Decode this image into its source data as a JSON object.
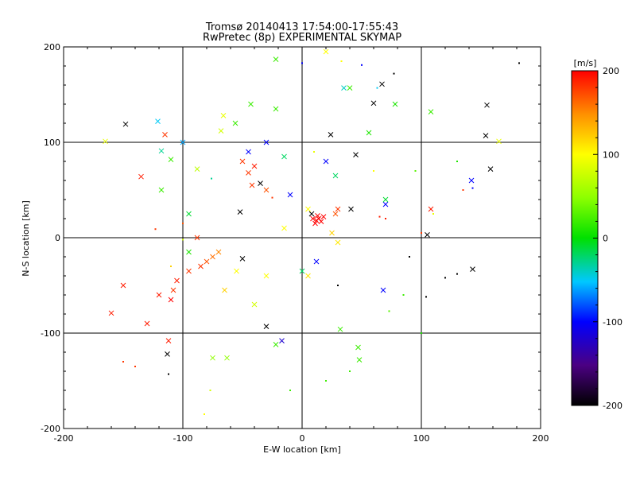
{
  "chart_data": {
    "type": "scatter",
    "title": "Tromsø 20140413 17:54:00-17:55:43",
    "subtitle": "RwPretec (8p) EXPERIMENTAL SKYMAP",
    "xlabel": "E-W location [km]",
    "ylabel": "N-S location [km]",
    "xlim": [
      -200,
      200
    ],
    "ylim": [
      -200,
      200
    ],
    "x_ticks": [
      "-200",
      "-100",
      "0",
      "100",
      "200"
    ],
    "y_ticks": [
      "-200",
      "-100",
      "0",
      "100",
      "200"
    ],
    "grid": "on at ±100 and 0",
    "colorbar": {
      "label": "[m/s]",
      "range": [
        -200,
        200
      ],
      "ticks": [
        "200",
        "100",
        "0",
        "-100",
        "-200"
      ],
      "colormap": "black-purple-blue-cyan-green-yellow-red",
      "placement": "right"
    },
    "markers": "crosses (x) for larger echoes, small dots for weaker ones",
    "points": [
      {
        "x": 182,
        "y": 183,
        "v": -200,
        "m": "dot"
      },
      {
        "x": 67,
        "y": 161,
        "v": -200,
        "m": "x"
      },
      {
        "x": 60,
        "y": 141,
        "v": -200,
        "m": "x"
      },
      {
        "x": 155,
        "y": 139,
        "v": -200,
        "m": "x"
      },
      {
        "x": 154,
        "y": 107,
        "v": -200,
        "m": "x"
      },
      {
        "x": 158,
        "y": 72,
        "v": -200,
        "m": "x"
      },
      {
        "x": 77,
        "y": 172,
        "v": -200,
        "m": "dot"
      },
      {
        "x": 105,
        "y": 3,
        "v": -200,
        "m": "x"
      },
      {
        "x": 143,
        "y": -33,
        "v": -200,
        "m": "x"
      },
      {
        "x": 120,
        "y": -42,
        "v": -200,
        "m": "dot"
      },
      {
        "x": 104,
        "y": -62,
        "v": -200,
        "m": "dot"
      },
      {
        "x": -148,
        "y": 119,
        "v": -200,
        "m": "x"
      },
      {
        "x": -113,
        "y": -122,
        "v": -200,
        "m": "x"
      },
      {
        "x": -112,
        "y": -143,
        "v": -200,
        "m": "dot"
      },
      {
        "x": -30,
        "y": -93,
        "v": -200,
        "m": "x"
      },
      {
        "x": 24,
        "y": 108,
        "v": -200,
        "m": "x"
      },
      {
        "x": 45,
        "y": 87,
        "v": -200,
        "m": "x"
      },
      {
        "x": 41,
        "y": 30,
        "v": -200,
        "m": "x"
      },
      {
        "x": -50,
        "y": -22,
        "v": -200,
        "m": "x"
      },
      {
        "x": -52,
        "y": 27,
        "v": -200,
        "m": "x"
      },
      {
        "x": -35,
        "y": 57,
        "v": -200,
        "m": "x"
      },
      {
        "x": 8,
        "y": 25,
        "v": -200,
        "m": "x"
      },
      {
        "x": 30,
        "y": -50,
        "v": -200,
        "m": "dot"
      },
      {
        "x": 90,
        "y": -20,
        "v": -200,
        "m": "dot"
      },
      {
        "x": 130,
        "y": -38,
        "v": -200,
        "m": "dot"
      },
      {
        "x": -17,
        "y": -108,
        "v": -120,
        "m": "x"
      },
      {
        "x": 142,
        "y": 60,
        "v": -100,
        "m": "x"
      },
      {
        "x": 143,
        "y": 52,
        "v": -100,
        "m": "dot"
      },
      {
        "x": 70,
        "y": 35,
        "v": -100,
        "m": "x"
      },
      {
        "x": 68,
        "y": -55,
        "v": -100,
        "m": "x"
      },
      {
        "x": -45,
        "y": 90,
        "v": -100,
        "m": "x"
      },
      {
        "x": -30,
        "y": 100,
        "v": -100,
        "m": "x"
      },
      {
        "x": -10,
        "y": 45,
        "v": -100,
        "m": "x"
      },
      {
        "x": 20,
        "y": 80,
        "v": -100,
        "m": "x"
      },
      {
        "x": 12,
        "y": -25,
        "v": -100,
        "m": "x"
      },
      {
        "x": 0,
        "y": 183,
        "v": -100,
        "m": "dot"
      },
      {
        "x": 50,
        "y": 181,
        "v": -100,
        "m": "dot"
      },
      {
        "x": -121,
        "y": 122,
        "v": -50,
        "m": "x"
      },
      {
        "x": 63,
        "y": 157,
        "v": -50,
        "m": "dot"
      },
      {
        "x": -100,
        "y": 100,
        "v": -60,
        "m": "x"
      },
      {
        "x": 35,
        "y": 157,
        "v": -40,
        "m": "x"
      },
      {
        "x": -76,
        "y": 62,
        "v": -30,
        "m": "dot"
      },
      {
        "x": -118,
        "y": 91,
        "v": -30,
        "m": "x"
      },
      {
        "x": 28,
        "y": 65,
        "v": -20,
        "m": "x"
      },
      {
        "x": 70,
        "y": 40,
        "v": -10,
        "m": "x"
      },
      {
        "x": -15,
        "y": 85,
        "v": -20,
        "m": "x"
      },
      {
        "x": 0,
        "y": -35,
        "v": -20,
        "m": "x"
      },
      {
        "x": -95,
        "y": 25,
        "v": -10,
        "m": "x"
      },
      {
        "x": -118,
        "y": 50,
        "v": 20,
        "m": "x"
      },
      {
        "x": 40,
        "y": 157,
        "v": 20,
        "m": "x"
      },
      {
        "x": 56,
        "y": 110,
        "v": 10,
        "m": "x"
      },
      {
        "x": -56,
        "y": 120,
        "v": 20,
        "m": "x"
      },
      {
        "x": 108,
        "y": 132,
        "v": 20,
        "m": "x"
      },
      {
        "x": 78,
        "y": 140,
        "v": 10,
        "m": "x"
      },
      {
        "x": -110,
        "y": 82,
        "v": 20,
        "m": "x"
      },
      {
        "x": -22,
        "y": 187,
        "v": 20,
        "m": "x"
      },
      {
        "x": -43,
        "y": 140,
        "v": 20,
        "m": "x"
      },
      {
        "x": -22,
        "y": 135,
        "v": 20,
        "m": "x"
      },
      {
        "x": -95,
        "y": -15,
        "v": 10,
        "m": "x"
      },
      {
        "x": 47,
        "y": -115,
        "v": 20,
        "m": "x"
      },
      {
        "x": 48,
        "y": -128,
        "v": 20,
        "m": "x"
      },
      {
        "x": 32,
        "y": -96,
        "v": 20,
        "m": "x"
      },
      {
        "x": -22,
        "y": -112,
        "v": 20,
        "m": "x"
      },
      {
        "x": -75,
        "y": -126,
        "v": 50,
        "m": "x"
      },
      {
        "x": -63,
        "y": -126,
        "v": 50,
        "m": "x"
      },
      {
        "x": -10,
        "y": -160,
        "v": 20,
        "m": "dot"
      },
      {
        "x": 20,
        "y": -150,
        "v": 20,
        "m": "dot"
      },
      {
        "x": 40,
        "y": -140,
        "v": 20,
        "m": "dot"
      },
      {
        "x": 73,
        "y": -77,
        "v": 30,
        "m": "dot"
      },
      {
        "x": 100,
        "y": -100,
        "v": 10,
        "m": "dot"
      },
      {
        "x": 85,
        "y": -60,
        "v": 20,
        "m": "dot"
      },
      {
        "x": 130,
        "y": 80,
        "v": 10,
        "m": "dot"
      },
      {
        "x": 95,
        "y": 70,
        "v": 30,
        "m": "dot"
      },
      {
        "x": -88,
        "y": 72,
        "v": 70,
        "m": "x"
      },
      {
        "x": -68,
        "y": 112,
        "v": 80,
        "m": "x"
      },
      {
        "x": -66,
        "y": 128,
        "v": 90,
        "m": "x"
      },
      {
        "x": 20,
        "y": 195,
        "v": 100,
        "m": "x"
      },
      {
        "x": 33,
        "y": 185,
        "v": 100,
        "m": "dot"
      },
      {
        "x": -100,
        "y": -2,
        "v": 80,
        "m": "dot"
      },
      {
        "x": -110,
        "y": -30,
        "v": 120,
        "m": "dot"
      },
      {
        "x": -77,
        "y": -160,
        "v": 80,
        "m": "dot"
      },
      {
        "x": -82,
        "y": -185,
        "v": 100,
        "m": "dot"
      },
      {
        "x": -40,
        "y": -70,
        "v": 80,
        "m": "x"
      },
      {
        "x": -65,
        "y": -55,
        "v": 120,
        "m": "x"
      },
      {
        "x": -55,
        "y": -35,
        "v": 100,
        "m": "x"
      },
      {
        "x": 5,
        "y": 30,
        "v": 100,
        "m": "x"
      },
      {
        "x": 25,
        "y": 5,
        "v": 120,
        "m": "x"
      },
      {
        "x": 30,
        "y": -5,
        "v": 110,
        "m": "x"
      },
      {
        "x": -15,
        "y": 10,
        "v": 100,
        "m": "x"
      },
      {
        "x": 10,
        "y": 90,
        "v": 90,
        "m": "dot"
      },
      {
        "x": 60,
        "y": 70,
        "v": 100,
        "m": "dot"
      },
      {
        "x": 110,
        "y": 25,
        "v": 90,
        "m": "dot"
      },
      {
        "x": 165,
        "y": 101,
        "v": 90,
        "m": "x"
      },
      {
        "x": -165,
        "y": 101,
        "v": 90,
        "m": "x"
      },
      {
        "x": 5,
        "y": -40,
        "v": 110,
        "m": "x"
      },
      {
        "x": -30,
        "y": -40,
        "v": 100,
        "m": "x"
      },
      {
        "x": 12,
        "y": 18,
        "v": 200,
        "m": "x"
      },
      {
        "x": 14,
        "y": 20,
        "v": 200,
        "m": "x"
      },
      {
        "x": 16,
        "y": 17,
        "v": 200,
        "m": "x"
      },
      {
        "x": 11,
        "y": 15,
        "v": 200,
        "m": "x"
      },
      {
        "x": 18,
        "y": 22,
        "v": 200,
        "m": "x"
      },
      {
        "x": 13,
        "y": 23,
        "v": 200,
        "m": "x"
      },
      {
        "x": 9,
        "y": 20,
        "v": 200,
        "m": "x"
      },
      {
        "x": -135,
        "y": 64,
        "v": 190,
        "m": "x"
      },
      {
        "x": -115,
        "y": 108,
        "v": 180,
        "m": "x"
      },
      {
        "x": -160,
        "y": -79,
        "v": 190,
        "m": "x"
      },
      {
        "x": -150,
        "y": -50,
        "v": 190,
        "m": "x"
      },
      {
        "x": -130,
        "y": -90,
        "v": 190,
        "m": "x"
      },
      {
        "x": -112,
        "y": -108,
        "v": 190,
        "m": "x"
      },
      {
        "x": -108,
        "y": -55,
        "v": 180,
        "m": "x"
      },
      {
        "x": -120,
        "y": -60,
        "v": 190,
        "m": "x"
      },
      {
        "x": -110,
        "y": -65,
        "v": 200,
        "m": "x"
      },
      {
        "x": -105,
        "y": -45,
        "v": 190,
        "m": "x"
      },
      {
        "x": -95,
        "y": -35,
        "v": 180,
        "m": "x"
      },
      {
        "x": -85,
        "y": -30,
        "v": 180,
        "m": "x"
      },
      {
        "x": -80,
        "y": -25,
        "v": 170,
        "m": "x"
      },
      {
        "x": -75,
        "y": -20,
        "v": 160,
        "m": "x"
      },
      {
        "x": -70,
        "y": -15,
        "v": 150,
        "m": "x"
      },
      {
        "x": -88,
        "y": 0,
        "v": 180,
        "m": "x"
      },
      {
        "x": -123,
        "y": 9,
        "v": 180,
        "m": "dot"
      },
      {
        "x": -150,
        "y": -130,
        "v": 180,
        "m": "dot"
      },
      {
        "x": -140,
        "y": -135,
        "v": 180,
        "m": "dot"
      },
      {
        "x": -45,
        "y": 68,
        "v": 180,
        "m": "x"
      },
      {
        "x": -40,
        "y": 75,
        "v": 190,
        "m": "x"
      },
      {
        "x": -50,
        "y": 80,
        "v": 180,
        "m": "x"
      },
      {
        "x": -42,
        "y": 55,
        "v": 180,
        "m": "x"
      },
      {
        "x": -30,
        "y": 50,
        "v": 170,
        "m": "x"
      },
      {
        "x": -25,
        "y": 42,
        "v": 180,
        "m": "dot"
      },
      {
        "x": 30,
        "y": 30,
        "v": 180,
        "m": "x"
      },
      {
        "x": 28,
        "y": 25,
        "v": 170,
        "m": "x"
      },
      {
        "x": 65,
        "y": 22,
        "v": 190,
        "m": "dot"
      },
      {
        "x": 70,
        "y": 20,
        "v": 190,
        "m": "dot"
      },
      {
        "x": 100,
        "y": 5,
        "v": 180,
        "m": "dot"
      },
      {
        "x": 108,
        "y": 30,
        "v": 190,
        "m": "x"
      },
      {
        "x": 135,
        "y": 50,
        "v": 180,
        "m": "dot"
      },
      {
        "x": -100,
        "y": 15,
        "v": 170,
        "m": "dot"
      }
    ]
  }
}
